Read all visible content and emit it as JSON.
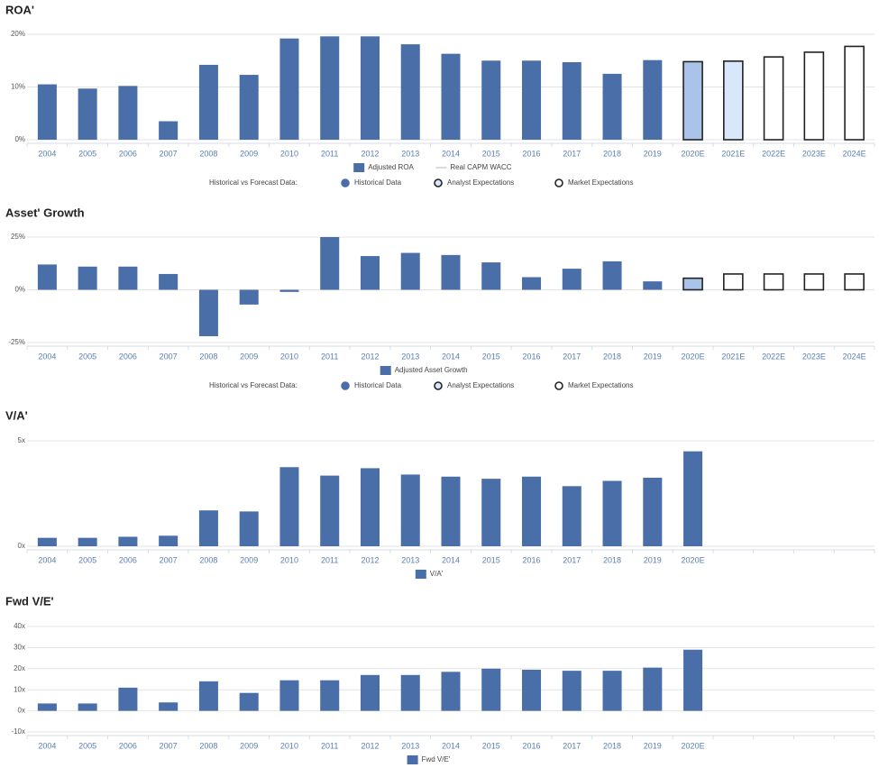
{
  "chart_data": [
    {
      "type": "bar",
      "title": "ROA'",
      "categories": [
        "2004",
        "2005",
        "2006",
        "2007",
        "2008",
        "2009",
        "2010",
        "2011",
        "2012",
        "2013",
        "2014",
        "2015",
        "2016",
        "2017",
        "2018",
        "2019",
        "2020E",
        "2021E",
        "2022E",
        "2023E",
        "2024E"
      ],
      "series": [
        {
          "name": "Adjusted ROA",
          "color": "#4a6fa8",
          "values": [
            10.5,
            9.7,
            10.2,
            3.5,
            14.2,
            12.3,
            19.2,
            19.6,
            19.6,
            18.1,
            16.3,
            15.0,
            15.0,
            14.7,
            12.5,
            15.1,
            14.8,
            14.9,
            15.7,
            16.6,
            17.7
          ],
          "colors": [
            "#4a6fa8",
            "#4a6fa8",
            "#4a6fa8",
            "#4a6fa8",
            "#4a6fa8",
            "#4a6fa8",
            "#4a6fa8",
            "#4a6fa8",
            "#4a6fa8",
            "#4a6fa8",
            "#4a6fa8",
            "#4a6fa8",
            "#4a6fa8",
            "#4a6fa8",
            "#4a6fa8",
            "#4a6fa8",
            "#a9c4e8",
            "#d8e8fa",
            "#ffffff",
            "#ffffff",
            "#ffffff"
          ],
          "edgecolors": [
            null,
            null,
            null,
            null,
            null,
            null,
            null,
            null,
            null,
            null,
            null,
            null,
            null,
            null,
            null,
            null,
            "#222222",
            "#222222",
            "#222222",
            "#222222",
            "#222222"
          ]
        }
      ],
      "legend": [
        {
          "name": "Real CAPM WACC",
          "color": "#d0d0d0"
        }
      ],
      "forecast_legend": {
        "title": "Historical vs Forecast Data:",
        "items": [
          {
            "name": "Historical Data",
            "color": "#4a6fa8",
            "edgecolor": "#4a6fa8"
          },
          {
            "name": "Analyst Expectations",
            "color": "#d8e8fa",
            "edgecolor": "#222222"
          },
          {
            "name": "Market Expectations",
            "color": "#ffffff",
            "edgecolor": "#222222"
          }
        ]
      },
      "ylim": [
        0,
        20
      ],
      "yticks": [
        {
          "value": 0,
          "label": "0%"
        },
        {
          "value": 10,
          "label": "10%"
        },
        {
          "value": 20,
          "label": "20%"
        }
      ],
      "grid": true
    },
    {
      "type": "bar",
      "title": "Asset' Growth",
      "categories": [
        "2004",
        "2005",
        "2006",
        "2007",
        "2008",
        "2009",
        "2010",
        "2011",
        "2012",
        "2013",
        "2014",
        "2015",
        "2016",
        "2017",
        "2018",
        "2019",
        "2020E",
        "2021E",
        "2022E",
        "2023E",
        "2024E"
      ],
      "series": [
        {
          "name": "Adjusted Asset Growth",
          "color": "#4a6fa8",
          "values": [
            12,
            11,
            11,
            7.5,
            -22,
            -7,
            -1,
            25,
            16,
            17.5,
            16.5,
            13,
            6,
            10,
            13.5,
            4,
            5.5,
            7.5,
            7.5,
            7.5,
            7.5
          ],
          "colors": [
            "#4a6fa8",
            "#4a6fa8",
            "#4a6fa8",
            "#4a6fa8",
            "#4a6fa8",
            "#4a6fa8",
            "#4a6fa8",
            "#4a6fa8",
            "#4a6fa8",
            "#4a6fa8",
            "#4a6fa8",
            "#4a6fa8",
            "#4a6fa8",
            "#4a6fa8",
            "#4a6fa8",
            "#4a6fa8",
            "#a9c4e8",
            "#ffffff",
            "#ffffff",
            "#ffffff",
            "#ffffff"
          ],
          "edgecolors": [
            null,
            null,
            null,
            null,
            null,
            null,
            null,
            null,
            null,
            null,
            null,
            null,
            null,
            null,
            null,
            null,
            "#222222",
            "#222222",
            "#222222",
            "#222222",
            "#222222"
          ]
        }
      ],
      "forecast_legend": {
        "title": "Historical vs Forecast Data:",
        "items": [
          {
            "name": "Historical Data",
            "color": "#4a6fa8",
            "edgecolor": "#4a6fa8"
          },
          {
            "name": "Analyst Expectations",
            "color": "#d8e8fa",
            "edgecolor": "#222222"
          },
          {
            "name": "Market Expectations",
            "color": "#ffffff",
            "edgecolor": "#222222"
          }
        ]
      },
      "ylim": [
        -25,
        25
      ],
      "yticks": [
        {
          "value": -25,
          "label": "-25%"
        },
        {
          "value": 0,
          "label": "0%"
        },
        {
          "value": 25,
          "label": "25%"
        }
      ],
      "grid": true
    },
    {
      "type": "bar",
      "title": "V/A'",
      "categories": [
        "2004",
        "2005",
        "2006",
        "2007",
        "2008",
        "2009",
        "2010",
        "2011",
        "2012",
        "2013",
        "2014",
        "2015",
        "2016",
        "2017",
        "2018",
        "2019",
        "2020E",
        null,
        null,
        null,
        null
      ],
      "series": [
        {
          "name": "V/A'",
          "color": "#4a6fa8",
          "values": [
            0.4,
            0.4,
            0.45,
            0.5,
            1.7,
            1.65,
            3.75,
            3.35,
            3.7,
            3.4,
            3.3,
            3.2,
            3.3,
            2.85,
            3.1,
            3.25,
            4.5,
            null,
            null,
            null,
            null
          ]
        }
      ],
      "ylim": [
        0,
        5
      ],
      "yticks": [
        {
          "value": 0,
          "label": "0x"
        },
        {
          "value": 5,
          "label": "5x"
        }
      ],
      "grid": true
    },
    {
      "type": "bar",
      "title": "Fwd V/E'",
      "categories": [
        "2004",
        "2005",
        "2006",
        "2007",
        "2008",
        "2009",
        "2010",
        "2011",
        "2012",
        "2013",
        "2014",
        "2015",
        "2016",
        "2017",
        "2018",
        "2019",
        "2020E",
        null,
        null,
        null,
        null
      ],
      "series": [
        {
          "name": "Fwd V/E'",
          "color": "#4a6fa8",
          "values": [
            3.5,
            3.5,
            11,
            4,
            14,
            8.5,
            14.5,
            14.5,
            17,
            17,
            18.5,
            20,
            19.5,
            19,
            19,
            20.5,
            29,
            null,
            null,
            null,
            null
          ]
        }
      ],
      "ylim": [
        -10,
        40
      ],
      "yticks": [
        {
          "value": -10,
          "label": "-10x"
        },
        {
          "value": 0,
          "label": "0x"
        },
        {
          "value": 10,
          "label": "10x"
        },
        {
          "value": 20,
          "label": "20x"
        },
        {
          "value": 30,
          "label": "30x"
        },
        {
          "value": 40,
          "label": "40x"
        }
      ],
      "grid": true
    }
  ]
}
